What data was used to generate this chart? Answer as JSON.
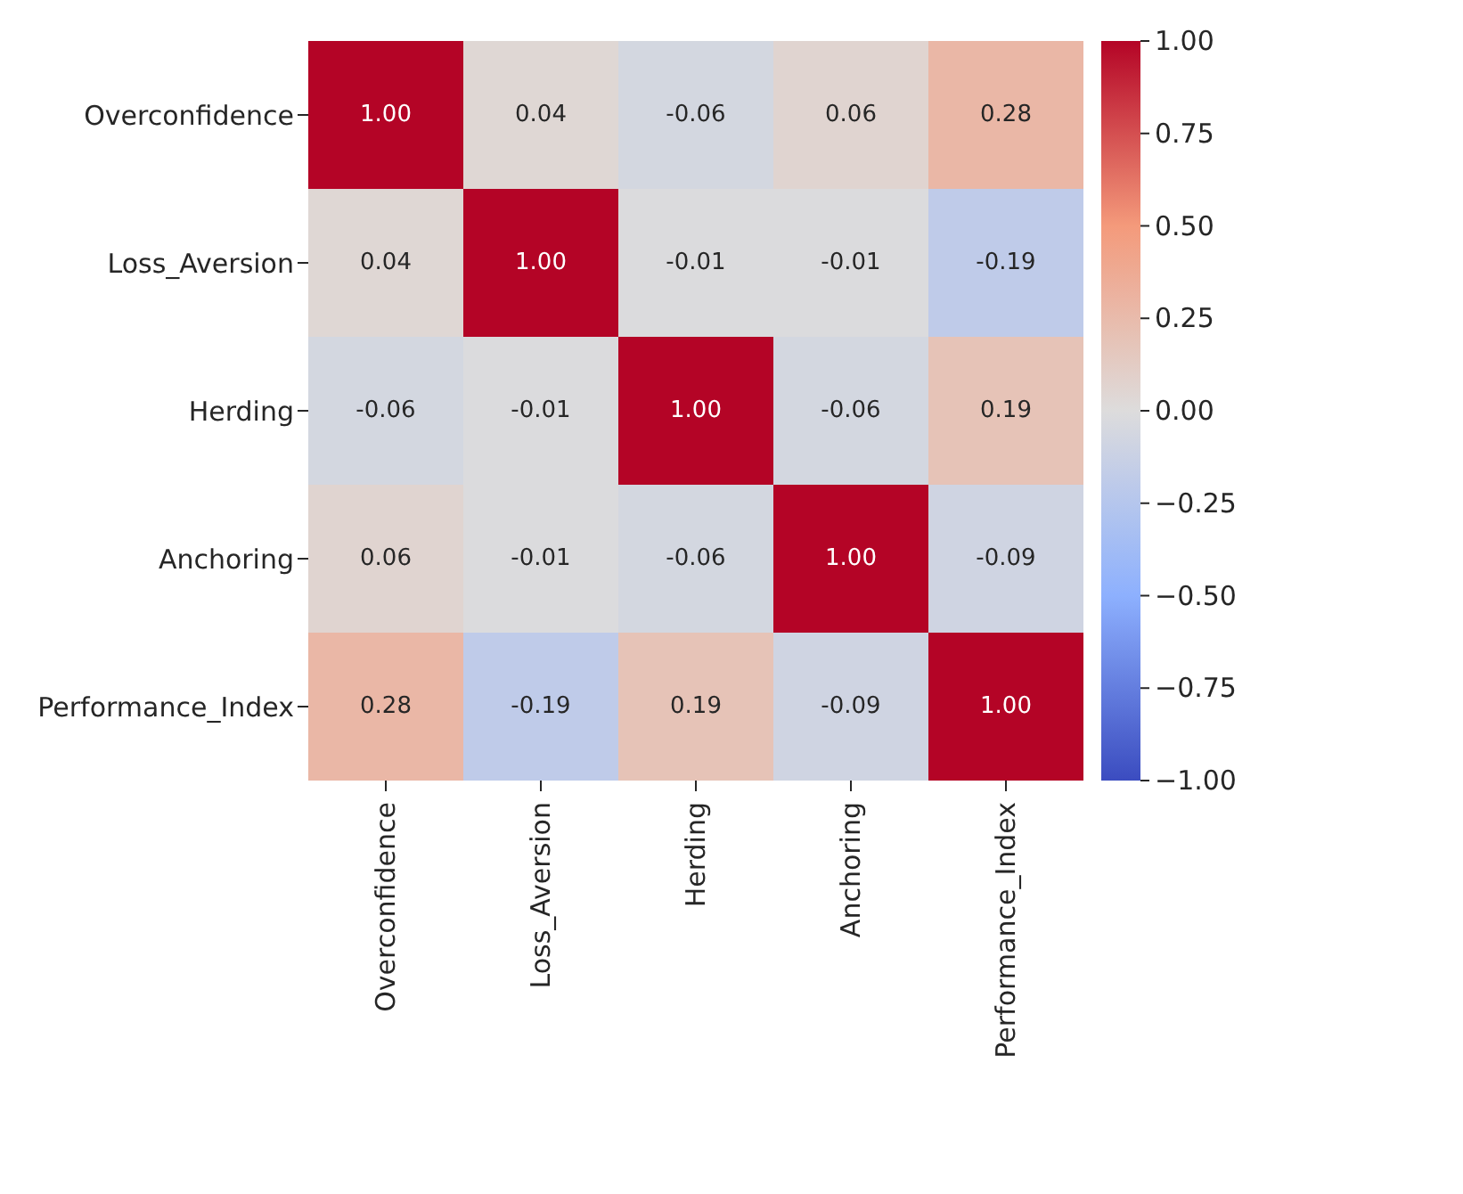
{
  "chart_data": {
    "type": "heatmap",
    "categories": [
      "Overconfidence",
      "Loss_Aversion",
      "Herding",
      "Anchoring",
      "Performance_Index"
    ],
    "y_categories": [
      "Overconfidence",
      "Loss_Aversion",
      "Herding",
      "Anchoring",
      "Performance_Index"
    ],
    "cells": [
      [
        1.0,
        0.04,
        -0.06,
        0.06,
        0.28
      ],
      [
        0.04,
        1.0,
        -0.01,
        -0.01,
        -0.19
      ],
      [
        -0.06,
        -0.01,
        1.0,
        -0.06,
        0.19
      ],
      [
        0.06,
        -0.01,
        -0.06,
        1.0,
        -0.09
      ],
      [
        0.28,
        -0.19,
        0.19,
        -0.09,
        1.0
      ]
    ],
    "cell_labels": [
      [
        "1.00",
        "0.04",
        "-0.06",
        "0.06",
        "0.28"
      ],
      [
        "0.04",
        "1.00",
        "-0.01",
        "-0.01",
        "-0.19"
      ],
      [
        "-0.06",
        "-0.01",
        "1.00",
        "-0.06",
        "0.19"
      ],
      [
        "0.06",
        "-0.01",
        "-0.06",
        "1.00",
        "-0.09"
      ],
      [
        "0.28",
        "-0.19",
        "0.19",
        "-0.09",
        "1.00"
      ]
    ],
    "clim": [
      -1,
      1
    ],
    "cticks": [
      {
        "value": 1,
        "label": "1.00"
      },
      {
        "value": 0.75,
        "label": "0.75"
      },
      {
        "value": 0.5,
        "label": "0.50"
      },
      {
        "value": 0.25,
        "label": "0.25"
      },
      {
        "value": 0,
        "label": "0.00"
      },
      {
        "value": -0.25,
        "label": "−0.25"
      },
      {
        "value": -0.5,
        "label": "−0.50"
      },
      {
        "value": -0.75,
        "label": "−0.75"
      },
      {
        "value": -1,
        "label": "−1.00"
      }
    ]
  }
}
